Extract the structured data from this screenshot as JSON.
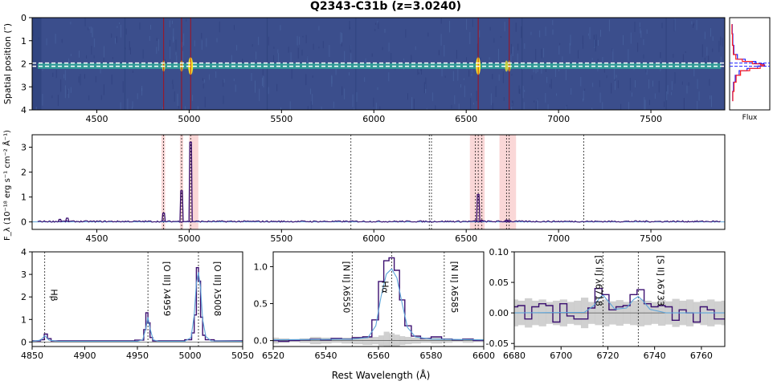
{
  "figure": {
    "title": "Q2343-C31b (z=3.0240)",
    "common_xlabel": "Rest Wavelength (Å)",
    "colors": {
      "spectrum": "#3b0f70",
      "model": "#5da5da",
      "lines": "#c00000",
      "shade": "#f4a6a6",
      "error": "#c8c8c8",
      "aperture": "#ffffff",
      "profile_a": "#1f1fff",
      "profile_b": "#ff2020",
      "image_bg": "#3b4e8c",
      "image_trace": "#2fb39a",
      "image_peak": "#f6e52a"
    }
  },
  "chart_data": [
    {
      "id": "image2d",
      "type": "heatmap",
      "ylabel": "Spatial position (″)",
      "xlim": [
        4150,
        7900
      ],
      "ylim": [
        4,
        0
      ],
      "xticks": [
        "4500",
        "5000",
        "5500",
        "6000",
        "6500",
        "7000",
        "7500"
      ],
      "yticks": [
        "0",
        "1",
        "2",
        "3",
        "4"
      ],
      "aperture_rows": [
        1.97,
        2.11
      ],
      "trace_center": 2.1,
      "emission_wavelengths": [
        4862,
        4959,
        5008,
        6565,
        6718,
        6733
      ],
      "red_lines": [
        4862,
        4959,
        5008,
        6565,
        6733
      ]
    },
    {
      "id": "profile",
      "type": "line",
      "xlabel": "Flux",
      "ylim": [
        4,
        0
      ],
      "series": [
        {
          "y": [
            0.3,
            0.7,
            1.2,
            1.6,
            1.8,
            1.9,
            2.0,
            2.05,
            2.1,
            2.2,
            2.3,
            2.5,
            2.8,
            3.2,
            3.6
          ],
          "values": [
            0.02,
            0.04,
            0.05,
            0.1,
            0.25,
            0.55,
            0.85,
            1.0,
            0.9,
            0.6,
            0.3,
            0.15,
            0.08,
            0.05,
            0.03
          ]
        },
        {
          "y": [
            0.3,
            0.7,
            1.2,
            1.6,
            1.8,
            1.9,
            2.0,
            2.05,
            2.1,
            2.2,
            2.3,
            2.5,
            2.8,
            3.2,
            3.6
          ],
          "values": [
            0.01,
            0.03,
            0.04,
            0.08,
            0.18,
            0.45,
            0.75,
            0.92,
            0.95,
            0.7,
            0.35,
            0.18,
            0.1,
            0.06,
            0.03
          ]
        }
      ],
      "hlines": [
        1.97,
        2.11
      ]
    },
    {
      "id": "spectrum1d",
      "type": "line",
      "ylabel": "F_λ (10⁻¹⁸ erg s⁻¹ cm⁻² Å⁻¹)",
      "xlim": [
        4150,
        7900
      ],
      "ylim": [
        -0.3,
        3.5
      ],
      "xticks": [
        "4500",
        "5000",
        "5500",
        "6000",
        "6500",
        "7000",
        "7500"
      ],
      "yticks": [
        "0",
        "1",
        "2",
        "3"
      ],
      "shaded_regions": [
        [
          4850,
          4870
        ],
        [
          4950,
          4968
        ],
        [
          5000,
          5050
        ],
        [
          6520,
          6600
        ],
        [
          6680,
          6770
        ]
      ],
      "vlines": [
        4862,
        4959,
        5008,
        5876,
        6300,
        6312,
        6550,
        6565,
        6585,
        6718,
        6733,
        7136
      ],
      "peaks": [
        {
          "x": 4862,
          "y": 0.35
        },
        {
          "x": 4959,
          "y": 1.25
        },
        {
          "x": 5008,
          "y": 3.2
        },
        {
          "x": 6565,
          "y": 1.1
        },
        {
          "x": 6550,
          "y": 0.05
        },
        {
          "x": 6585,
          "y": 0.06
        },
        {
          "x": 6718,
          "y": 0.07
        },
        {
          "x": 6733,
          "y": 0.06
        },
        {
          "x": 4340,
          "y": 0.15
        },
        {
          "x": 4300,
          "y": 0.1
        }
      ]
    },
    {
      "id": "zoom_hb_oiii",
      "type": "line",
      "xlim": [
        4850,
        5050
      ],
      "ylim": [
        -0.2,
        4
      ],
      "xticks": [
        "4850",
        "4900",
        "4950",
        "5000",
        "5050"
      ],
      "yticks": [
        "0",
        "1",
        "2",
        "3",
        "4"
      ],
      "lines": [
        {
          "x": 4862,
          "label": "Hβ"
        },
        {
          "x": 4960,
          "label": "[O III] λ4959"
        },
        {
          "x": 5008,
          "label": "[O III] λ5008"
        }
      ],
      "step": {
        "x": [
          4850,
          4856,
          4860,
          4863,
          4866,
          4870,
          4880,
          4900,
          4920,
          4940,
          4955,
          4957,
          4959,
          4961,
          4963,
          4966,
          4975,
          4990,
          5000,
          5003,
          5005,
          5007,
          5009,
          5011,
          5013,
          5016,
          5030,
          5045,
          5050
        ],
        "y": [
          0.05,
          0.05,
          0.1,
          0.35,
          0.15,
          0.05,
          0.05,
          0.05,
          0.05,
          0.05,
          0.08,
          0.55,
          1.3,
          0.85,
          0.2,
          0.05,
          0.05,
          0.05,
          0.1,
          0.4,
          1.2,
          3.3,
          2.7,
          1.1,
          0.3,
          0.1,
          0.05,
          0.05,
          0.05
        ]
      },
      "model": {
        "x": [
          4850,
          4858,
          4862,
          4866,
          4875,
          4950,
          4955,
          4958,
          4960,
          4962,
          4965,
          4970,
          4995,
          5001,
          5004,
          5006,
          5008,
          5010,
          5012,
          5015,
          5020,
          5050
        ],
        "y": [
          0.03,
          0.08,
          0.28,
          0.08,
          0.03,
          0.03,
          0.1,
          0.6,
          1.1,
          0.6,
          0.1,
          0.03,
          0.03,
          0.2,
          1.2,
          2.6,
          3.1,
          2.4,
          1.0,
          0.25,
          0.05,
          0.03
        ]
      }
    },
    {
      "id": "zoom_ha",
      "type": "line",
      "xlim": [
        6520,
        6600
      ],
      "ylim": [
        -0.08,
        1.2
      ],
      "xticks": [
        "6520",
        "6540",
        "6560",
        "6580",
        "6600"
      ],
      "yticks": [
        "0.0",
        "0.5",
        "1.0"
      ],
      "lines": [
        {
          "x": 6550,
          "label": "[N II] λ6550"
        },
        {
          "x": 6565,
          "label": "Hα"
        },
        {
          "x": 6585,
          "label": "[N II] λ6585"
        }
      ],
      "step": {
        "x": [
          6520,
          6524,
          6528,
          6532,
          6536,
          6540,
          6544,
          6548,
          6552,
          6556,
          6559,
          6561,
          6563,
          6565,
          6567,
          6569,
          6571,
          6574,
          6578,
          6582,
          6586,
          6590,
          6594,
          6598,
          6600
        ],
        "y": [
          0.0,
          -0.01,
          0.0,
          0.01,
          0.02,
          0.01,
          0.03,
          0.02,
          0.04,
          0.05,
          0.28,
          0.8,
          1.08,
          1.12,
          0.95,
          0.55,
          0.2,
          0.06,
          0.03,
          0.05,
          0.02,
          0.01,
          0.02,
          0.0,
          0.0
        ]
      },
      "model": {
        "x": [
          6520,
          6550,
          6556,
          6559,
          6561,
          6563,
          6565,
          6567,
          6569,
          6571,
          6574,
          6580,
          6600
        ],
        "y": [
          0.01,
          0.02,
          0.04,
          0.2,
          0.6,
          0.9,
          0.97,
          0.85,
          0.5,
          0.18,
          0.05,
          0.02,
          0.01
        ]
      },
      "error": [
        0.04,
        0.03,
        0.02,
        0.03,
        0.05,
        0.04,
        0.03,
        0.04,
        0.05,
        0.06,
        0.05,
        0.07,
        0.12,
        0.1,
        0.08,
        0.06,
        0.05,
        0.04,
        0.03,
        0.04,
        0.03,
        0.02,
        0.03,
        0.02,
        0.02
      ]
    },
    {
      "id": "zoom_sii",
      "type": "line",
      "xlim": [
        6680,
        6770
      ],
      "ylim": [
        -0.055,
        0.1
      ],
      "xticks": [
        "6680",
        "6700",
        "6720",
        "6740",
        "6760"
      ],
      "yticks": [
        "0.10",
        "0.05",
        "0.00",
        "-0.05"
      ],
      "lines": [
        {
          "x": 6718,
          "label": "[S II] λ6718"
        },
        {
          "x": 6733,
          "label": "[S II] λ6733"
        }
      ],
      "step": {
        "x": [
          6680,
          6683,
          6686,
          6689,
          6692,
          6695,
          6698,
          6701,
          6704,
          6707,
          6710,
          6713,
          6716,
          6719,
          6722,
          6725,
          6728,
          6731,
          6734,
          6737,
          6740,
          6743,
          6746,
          6749,
          6752,
          6755,
          6758,
          6761,
          6764,
          6767,
          6770
        ],
        "y": [
          0.01,
          0.012,
          -0.01,
          0.01,
          0.015,
          0.012,
          -0.015,
          0.015,
          -0.005,
          -0.01,
          -0.01,
          0.008,
          0.04,
          0.03,
          0.005,
          0.01,
          0.012,
          0.03,
          0.038,
          0.015,
          0.01,
          0.012,
          0.01,
          -0.012,
          0.005,
          0.0,
          -0.015,
          0.01,
          0.005,
          -0.01,
          -0.01
        ]
      },
      "model": {
        "x": [
          6680,
          6710,
          6714,
          6717,
          6718,
          6720,
          6723,
          6728,
          6731,
          6733,
          6735,
          6738,
          6745,
          6770
        ],
        "y": [
          0.0,
          0.001,
          0.012,
          0.027,
          0.029,
          0.02,
          0.006,
          0.008,
          0.022,
          0.027,
          0.02,
          0.006,
          0.0,
          0.0
        ]
      },
      "error": [
        0.022,
        0.02,
        0.024,
        0.02,
        0.022,
        0.018,
        0.02,
        0.022,
        0.018,
        0.02,
        0.025,
        0.018,
        0.02,
        0.022,
        0.019,
        0.021,
        0.018,
        0.02,
        0.022,
        0.02,
        0.018,
        0.021,
        0.019,
        0.023,
        0.02,
        0.022,
        0.018,
        0.02,
        0.022,
        0.019,
        0.02
      ]
    }
  ]
}
